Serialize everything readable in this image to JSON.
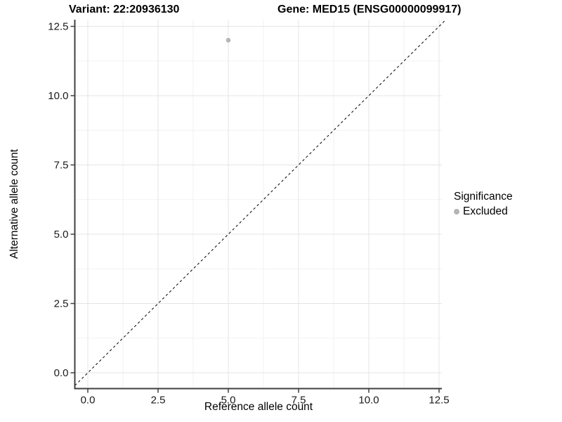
{
  "title": {
    "variant": "Variant: 22:20936130",
    "gene": "Gene: MED15 (ENSG00000099917)"
  },
  "axes": {
    "x": {
      "label": "Reference allele count"
    },
    "y": {
      "label": "Alternative allele count"
    }
  },
  "legend": {
    "title": "Significance",
    "entries": [
      {
        "label": "Excluded",
        "color": "#b5b5b5"
      }
    ]
  },
  "colors": {
    "axis_line": "#404040",
    "major_grid": "#e4e4e4",
    "minor_grid": "#f2f2f2",
    "tick_text": "#1a1a1a",
    "reference_line": "#000000",
    "point": "#b5b5b5",
    "background": "#ffffff"
  },
  "chart_data": {
    "type": "scatter",
    "title": "Variant: 22:20936130 | Gene: MED15 (ENSG00000099917)",
    "xlabel": "Reference allele count",
    "ylabel": "Alternative allele count",
    "xlim": [
      0,
      12.5
    ],
    "ylim": [
      0,
      12.5
    ],
    "x_ticks": [
      0,
      2.5,
      5,
      7.5,
      10,
      12.5
    ],
    "y_ticks": [
      0,
      2.5,
      5,
      7.5,
      10,
      12.5
    ],
    "x_tick_labels": [
      "0.0",
      "2.5",
      "5.0",
      "7.5",
      "10.0",
      "12.5"
    ],
    "y_tick_labels": [
      "0.0",
      "2.5",
      "5.0",
      "7.5",
      "10.0",
      "12.5"
    ],
    "grid": true,
    "minor_grid": true,
    "legend_position": "right",
    "legend_title": "Significance",
    "series": [
      {
        "name": "Excluded",
        "color": "#b5b5b5",
        "points": [
          {
            "x": 5,
            "y": 12
          }
        ]
      }
    ],
    "reference_line": {
      "equation": "y = x",
      "style": "dashed",
      "color": "#000000"
    }
  }
}
